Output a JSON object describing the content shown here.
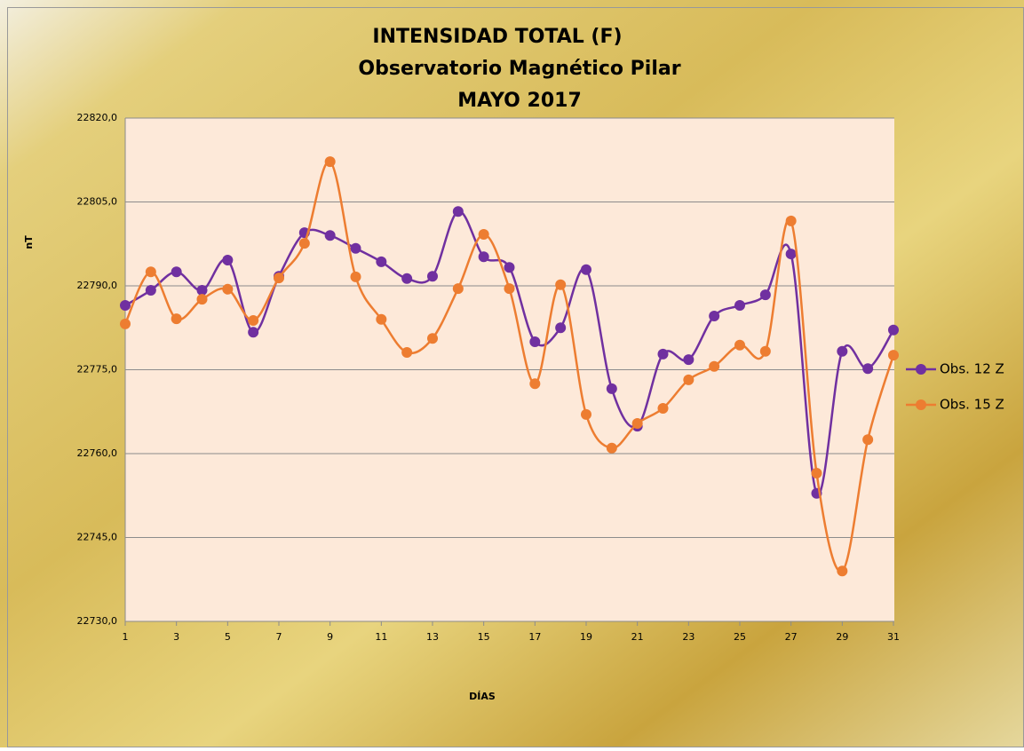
{
  "chart_data": {
    "type": "line",
    "title": [
      "INTENSIDAD TOTAL (F)",
      "Observatorio Magnético Pilar",
      "MAYO 2017"
    ],
    "x_label": "DÍAS",
    "y_label": "nT",
    "x": [
      1,
      2,
      3,
      4,
      5,
      6,
      7,
      8,
      9,
      10,
      11,
      12,
      13,
      14,
      15,
      16,
      17,
      18,
      19,
      20,
      21,
      22,
      23,
      24,
      25,
      26,
      27,
      28,
      29,
      30,
      31
    ],
    "xlim": [
      1,
      31
    ],
    "xticks": [
      1,
      3,
      5,
      7,
      9,
      11,
      13,
      15,
      17,
      19,
      21,
      23,
      25,
      27,
      29,
      31
    ],
    "ylim": [
      22730,
      22820
    ],
    "yticks": [
      {
        "value": 22730,
        "label": "22730,0"
      },
      {
        "value": 22745,
        "label": "22745,0"
      },
      {
        "value": 22760,
        "label": "22760,0"
      },
      {
        "value": 22775,
        "label": "22775,0"
      },
      {
        "value": 22790,
        "label": "22790,0"
      },
      {
        "value": 22805,
        "label": "22805,0"
      },
      {
        "value": 22820,
        "label": "22820,0"
      }
    ],
    "grid": true,
    "smooth": true,
    "legend": "right",
    "series": [
      {
        "name": "Obs. 12 Z",
        "color": "#7030a0",
        "values": [
          22786.5,
          22789.2,
          22792.5,
          22789.2,
          22794.6,
          22781.7,
          22791.7,
          22799.5,
          22799.0,
          22796.7,
          22794.3,
          22791.3,
          22791.7,
          22803.3,
          22795.2,
          22793.3,
          22780.0,
          22782.5,
          22792.9,
          22771.6,
          22764.9,
          22777.8,
          22776.8,
          22784.6,
          22786.5,
          22788.4,
          22795.7,
          22752.9,
          22778.3,
          22775.2,
          22782.1
        ]
      },
      {
        "name": "Obs. 15 Z",
        "color": "#ed7d31",
        "values": [
          22783.2,
          22792.5,
          22784.1,
          22787.6,
          22789.4,
          22783.8,
          22791.4,
          22797.6,
          22812.2,
          22791.6,
          22784.0,
          22778.1,
          22780.6,
          22789.5,
          22799.2,
          22789.5,
          22772.5,
          22790.2,
          22767.0,
          22761.0,
          22765.4,
          22768.1,
          22773.2,
          22775.6,
          22779.4,
          22778.3,
          22801.6,
          22756.5,
          22739.0,
          22762.5,
          22777.6
        ]
      }
    ]
  }
}
